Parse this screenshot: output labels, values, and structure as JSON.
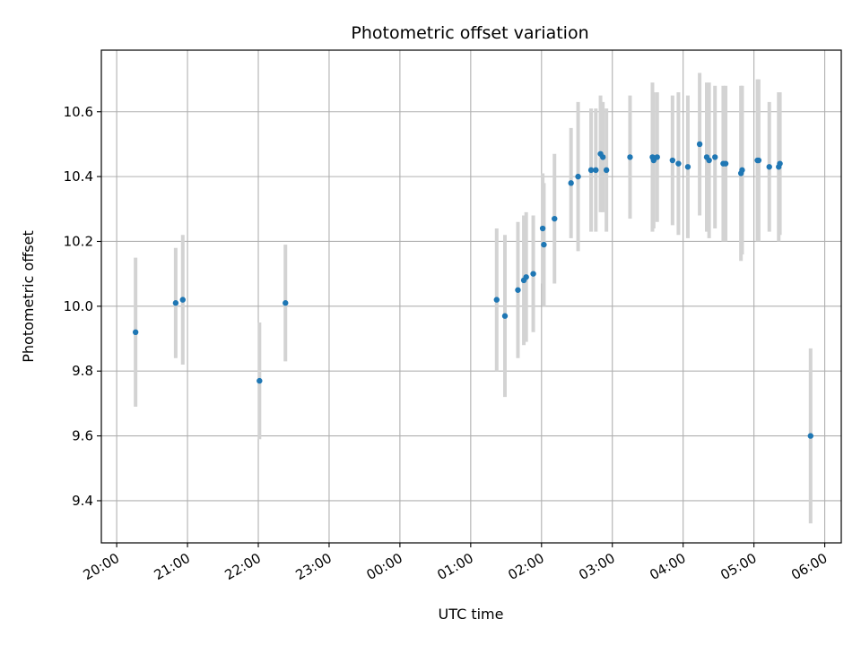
{
  "chart_data": {
    "type": "scatter",
    "title": "Photometric offset variation",
    "xlabel": "UTC time",
    "ylabel": "Photometric offset",
    "x_tick_labels": [
      "20:00",
      "21:00",
      "22:00",
      "23:00",
      "00:00",
      "01:00",
      "02:00",
      "03:00",
      "04:00",
      "05:00",
      "06:00"
    ],
    "y_tick_labels": [
      "9.4",
      "9.6",
      "9.8",
      "10.0",
      "10.2",
      "10.4",
      "10.6"
    ],
    "y_ticks": [
      9.4,
      9.6,
      9.8,
      10.0,
      10.2,
      10.4,
      10.6
    ],
    "xlim": [
      "19:47",
      "06:14"
    ],
    "ylim": [
      9.27,
      10.79
    ],
    "grid": true,
    "colors": {
      "point": "#1f77b4",
      "errorbar": "#d3d3d3",
      "grid": "#b0b0b0",
      "axis": "#000000"
    },
    "series": [
      {
        "x": [
          "20:16",
          "20:50",
          "20:56",
          "22:01",
          "22:23",
          "01:22",
          "01:29",
          "01:40",
          "01:45",
          "01:47",
          "01:53",
          "02:01",
          "02:02",
          "02:11",
          "02:25",
          "02:31",
          "02:42",
          "02:46",
          "02:50",
          "02:52",
          "02:55",
          "03:15",
          "03:34",
          "03:35",
          "03:38",
          "03:51",
          "03:56",
          "04:04",
          "04:14",
          "04:20",
          "04:22",
          "04:27",
          "04:34",
          "04:36",
          "04:49",
          "04:50",
          "05:03",
          "05:04",
          "05:13",
          "05:21",
          "05:22",
          "05:48"
        ],
        "y": [
          9.92,
          10.01,
          10.02,
          9.77,
          10.01,
          10.02,
          9.97,
          10.05,
          10.08,
          10.09,
          10.1,
          10.24,
          10.19,
          10.27,
          10.38,
          10.4,
          10.42,
          10.42,
          10.47,
          10.46,
          10.42,
          10.46,
          10.46,
          10.45,
          10.46,
          10.45,
          10.44,
          10.43,
          10.5,
          10.46,
          10.45,
          10.46,
          10.44,
          10.44,
          10.41,
          10.42,
          10.45,
          10.45,
          10.43,
          10.43,
          10.44,
          9.6
        ],
        "yerr": [
          0.23,
          0.17,
          0.2,
          0.18,
          0.18,
          0.22,
          0.25,
          0.21,
          0.2,
          0.2,
          0.18,
          0.17,
          0.19,
          0.2,
          0.17,
          0.23,
          0.19,
          0.19,
          0.18,
          0.17,
          0.19,
          0.19,
          0.23,
          0.21,
          0.2,
          0.2,
          0.22,
          0.22,
          0.22,
          0.23,
          0.24,
          0.22,
          0.24,
          0.24,
          0.27,
          0.26,
          0.25,
          0.25,
          0.2,
          0.23,
          0.22,
          0.27
        ]
      }
    ]
  }
}
